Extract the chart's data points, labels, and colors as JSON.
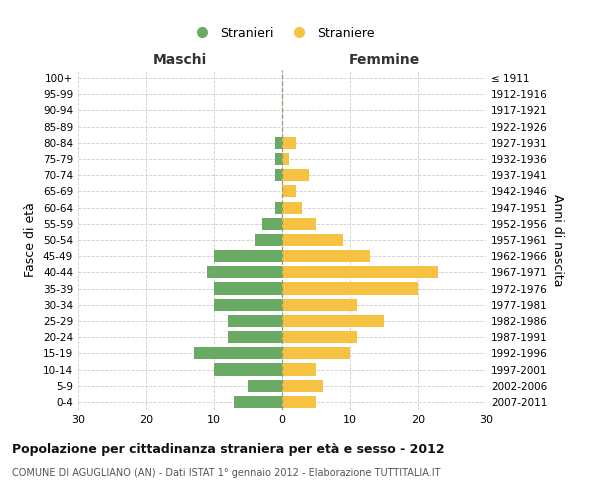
{
  "age_groups": [
    "0-4",
    "5-9",
    "10-14",
    "15-19",
    "20-24",
    "25-29",
    "30-34",
    "35-39",
    "40-44",
    "45-49",
    "50-54",
    "55-59",
    "60-64",
    "65-69",
    "70-74",
    "75-79",
    "80-84",
    "85-89",
    "90-94",
    "95-99",
    "100+"
  ],
  "birth_years": [
    "2007-2011",
    "2002-2006",
    "1997-2001",
    "1992-1996",
    "1987-1991",
    "1982-1986",
    "1977-1981",
    "1972-1976",
    "1967-1971",
    "1962-1966",
    "1957-1961",
    "1952-1956",
    "1947-1951",
    "1942-1946",
    "1937-1941",
    "1932-1936",
    "1927-1931",
    "1922-1926",
    "1917-1921",
    "1912-1916",
    "≤ 1911"
  ],
  "maschi": [
    7,
    5,
    10,
    13,
    8,
    8,
    10,
    10,
    11,
    10,
    4,
    3,
    1,
    0,
    1,
    1,
    1,
    0,
    0,
    0,
    0
  ],
  "femmine": [
    5,
    6,
    5,
    10,
    11,
    15,
    11,
    20,
    23,
    13,
    9,
    5,
    3,
    2,
    4,
    1,
    2,
    0,
    0,
    0,
    0
  ],
  "maschi_color": "#6aaa64",
  "femmine_color": "#f5c242",
  "background_color": "#ffffff",
  "grid_color": "#cccccc",
  "title": "Popolazione per cittadinanza straniera per età e sesso - 2012",
  "subtitle": "COMUNE DI AGUGLIANO (AN) - Dati ISTAT 1° gennaio 2012 - Elaborazione TUTTITALIA.IT",
  "ylabel_left": "Fasce di età",
  "ylabel_right": "Anni di nascita",
  "label_maschi": "Maschi",
  "label_femmine": "Femmine",
  "legend_maschi": "Stranieri",
  "legend_femmine": "Straniere",
  "xlim": 30
}
